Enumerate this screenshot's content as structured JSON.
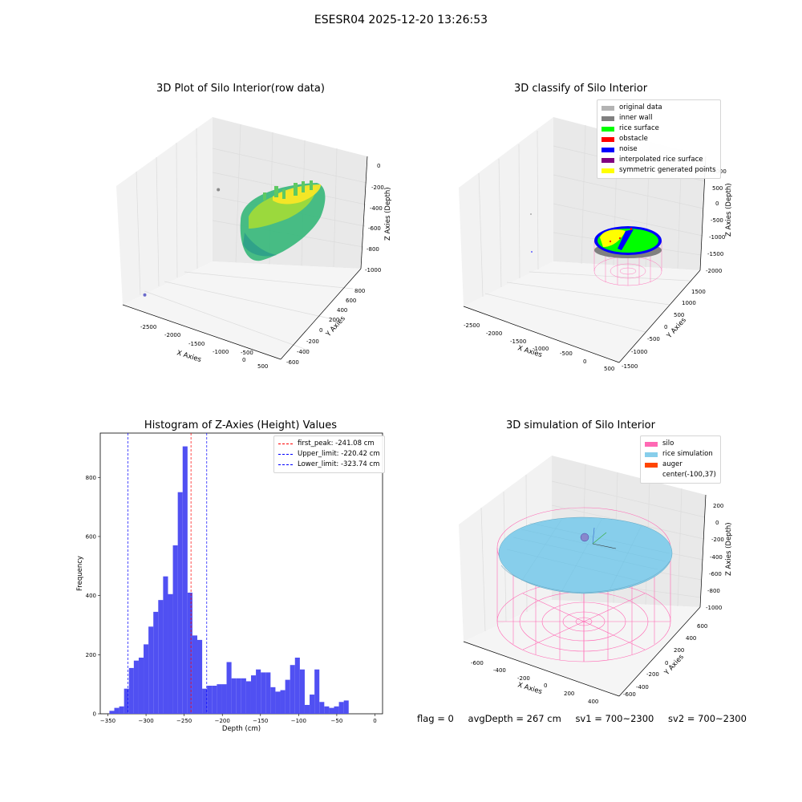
{
  "figure": {
    "title": "ESESR04 2025-12-20 13:26:53"
  },
  "status": {
    "flag": "flag = 0",
    "avg_depth": "avgDepth = 267 cm",
    "sv1": "sv1 = 700~2300",
    "sv2": "sv2 = 700~2300"
  },
  "chart_data": [
    {
      "type": "scatter",
      "title": "3D Plot of Silo Interior(row data)",
      "xlabel": "X Axies",
      "ylabel": "Y Axies",
      "zlabel": "Z Axies (Depth)",
      "x_ticks": [
        "-2500",
        "-2000",
        "-1500",
        "-1000",
        "-500",
        "0",
        "500"
      ],
      "y_ticks": [
        "-600",
        "-400",
        "-200",
        "0",
        "200",
        "400",
        "600",
        "800"
      ],
      "z_ticks": [
        "-1000",
        "-800",
        "-600",
        "-400",
        "-200",
        "0"
      ],
      "colormap": [
        "#440154",
        "#3b528b",
        "#21918c",
        "#5ec962",
        "#fde725"
      ],
      "outlier_points": [
        {
          "x": -2450,
          "y": -500,
          "z": -900,
          "color": "#6a6acb"
        },
        {
          "x": -2300,
          "y": 500,
          "z": -400,
          "color": "#8a8a8a"
        }
      ]
    },
    {
      "type": "scatter",
      "title": "3D classify of Silo Interior",
      "xlabel": "X Axies",
      "ylabel": "Y Axies",
      "zlabel": "Z Axies (Depth)",
      "x_ticks": [
        "-2500",
        "-2000",
        "-1500",
        "-1000",
        "-500",
        "0",
        "500"
      ],
      "y_ticks": [
        "-1500",
        "-1000",
        "-500",
        "0",
        "500",
        "1000",
        "1500"
      ],
      "z_ticks": [
        "-2000",
        "-1500",
        "-1000",
        "-500",
        "0",
        "500",
        "1000"
      ],
      "legend": [
        {
          "label": "original data",
          "color": "#b3b3b3"
        },
        {
          "label": "inner wall",
          "color": "#808080"
        },
        {
          "label": "rice surface",
          "color": "#00ff00"
        },
        {
          "label": "obstacle",
          "color": "#ff0000"
        },
        {
          "label": "noise",
          "color": "#0000ff"
        },
        {
          "label": "interpolated rice surface",
          "color": "#800080"
        },
        {
          "label": "symmetric generated points",
          "color": "#ffff00"
        }
      ],
      "wire_color": "#ff69b4"
    },
    {
      "type": "bar",
      "title": "Histogram of Z-Axies (Height) Values",
      "xlabel": "Depth (cm)",
      "ylabel": "Frequency",
      "xlim": [
        -360,
        10
      ],
      "ylim": [
        0,
        950
      ],
      "x_ticks": [
        -350,
        -300,
        -250,
        -200,
        -150,
        -100,
        -50,
        0
      ],
      "y_ticks": [
        0,
        200,
        400,
        600,
        800
      ],
      "bin_width": 6.4,
      "bin_start": -348,
      "counts": [
        10,
        20,
        25,
        85,
        155,
        180,
        190,
        235,
        295,
        345,
        385,
        465,
        405,
        570,
        750,
        905,
        410,
        265,
        250,
        85,
        95,
        95,
        100,
        100,
        175,
        120,
        120,
        120,
        110,
        130,
        150,
        140,
        140,
        90,
        75,
        80,
        115,
        165,
        190,
        150,
        30,
        65,
        150,
        40,
        25,
        20,
        25,
        40,
        45
      ],
      "bar_color": "#5050f2",
      "vlines": [
        {
          "label": "first_peak: -241.08 cm",
          "x": -241.08,
          "color": "#ff0000"
        },
        {
          "label": "Upper_limit: -220.42 cm",
          "x": -220.42,
          "color": "#0000ff"
        },
        {
          "label": "Lower_limit: -323.74 cm",
          "x": -323.74,
          "color": "#0000ff"
        }
      ]
    },
    {
      "type": "scatter",
      "title": "3D simulation of Silo Interior",
      "xlabel": "X Axies",
      "ylabel": "Y Axies",
      "zlabel": "Z Axies (Depth)",
      "x_ticks": [
        "-600",
        "-400",
        "-200",
        "0",
        "200",
        "400"
      ],
      "y_ticks": [
        "-600",
        "-400",
        "-200",
        "0",
        "200",
        "400",
        "600"
      ],
      "z_ticks": [
        "-1000",
        "-800",
        "-600",
        "-400",
        "-200",
        "0",
        "200"
      ],
      "legend": [
        {
          "label": "silo",
          "color": "#ff69b4"
        },
        {
          "label": "rice simulation",
          "color": "#87ceeb"
        },
        {
          "label": "auger",
          "color": "#ff4500"
        },
        {
          "label": "center(-100,37)",
          "color": ""
        }
      ]
    }
  ]
}
